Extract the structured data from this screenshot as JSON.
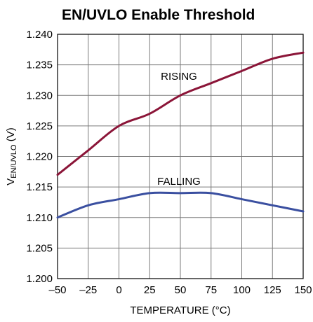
{
  "chart_data": {
    "type": "line",
    "title": "EN/UVLO Enable Threshold",
    "xlabel": "TEMPERATURE (°C)",
    "ylabel": {
      "main": "V",
      "subscript": "EN/UVLO",
      "suffix": " (V)"
    },
    "xlim": [
      -50,
      150
    ],
    "ylim": [
      1.2,
      1.24
    ],
    "x_ticks": [
      -50,
      -25,
      0,
      25,
      50,
      75,
      100,
      125,
      150
    ],
    "x_tick_labels": [
      "–50",
      "–25",
      "0",
      "25",
      "50",
      "75",
      "100",
      "125",
      "150"
    ],
    "y_ticks": [
      1.2,
      1.205,
      1.21,
      1.215,
      1.22,
      1.225,
      1.23,
      1.235,
      1.24
    ],
    "y_tick_labels": [
      "1.200",
      "1.205",
      "1.210",
      "1.215",
      "1.220",
      "1.225",
      "1.230",
      "1.235",
      "1.240"
    ],
    "grid": true,
    "series": [
      {
        "name": "RISING",
        "color": "#8b1538",
        "x": [
          -50,
          -25,
          0,
          25,
          50,
          75,
          100,
          125,
          150
        ],
        "values": [
          1.217,
          1.221,
          1.225,
          1.227,
          1.23,
          1.232,
          1.234,
          1.236,
          1.237
        ]
      },
      {
        "name": "FALLING",
        "color": "#3a4fa0",
        "x": [
          -50,
          -25,
          0,
          25,
          50,
          75,
          100,
          125,
          150
        ],
        "values": [
          1.21,
          1.212,
          1.213,
          1.214,
          1.214,
          1.214,
          1.213,
          1.212,
          1.211
        ]
      }
    ]
  }
}
